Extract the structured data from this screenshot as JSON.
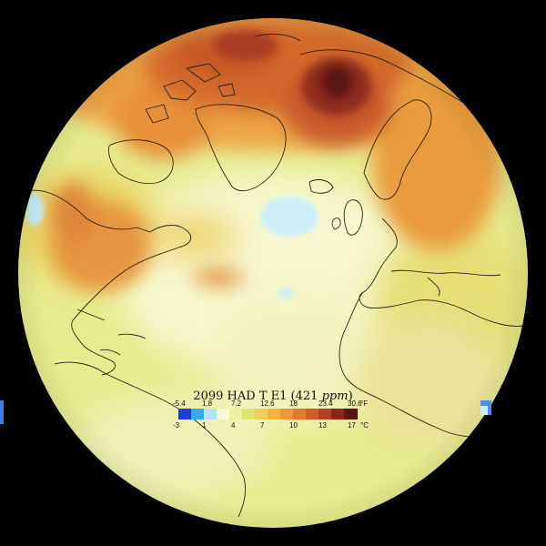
{
  "map": {
    "title_main": "2099 HAD T E1 (",
    "title_ppm_value": "421",
    "title_ppm_unit": "ppm",
    "title_close": ")"
  },
  "legend": {
    "fahrenheit_ticks": [
      "-5.4",
      "1.8",
      "7.2",
      "12.6",
      "18",
      "23.4",
      "30.6"
    ],
    "fahrenheit_unit": "°F",
    "celsius_ticks": [
      "-3",
      "1",
      "4",
      "7",
      "10",
      "13",
      "17"
    ],
    "celsius_unit": "°C",
    "colors": [
      "#1d3fd8",
      "#38a8f2",
      "#b4e4f6",
      "#f8f9d4",
      "#eef0a0",
      "#e0e474",
      "#ecd060",
      "#f2b445",
      "#ea9a3c",
      "#e07c33",
      "#cd5e2a",
      "#b13f23",
      "#8a271c",
      "#5a1512"
    ]
  }
}
